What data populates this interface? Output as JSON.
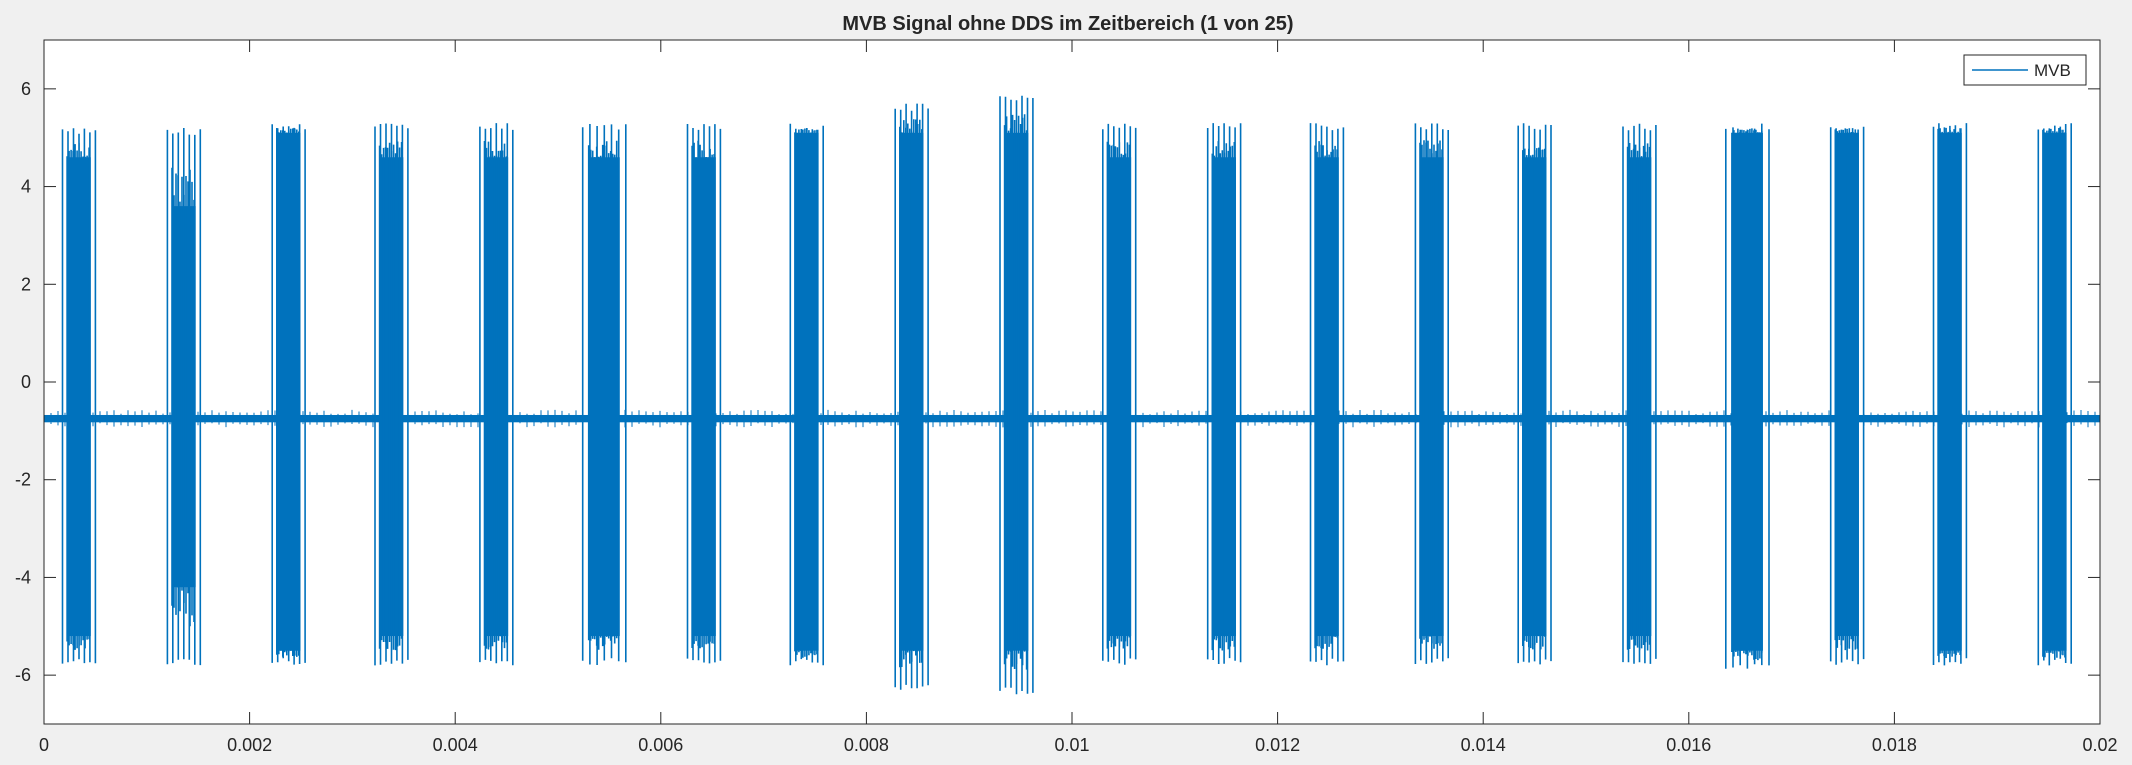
{
  "chart_data": {
    "type": "line",
    "title": "MVB Signal ohne DDS im Zeitbereich (1 von 25)",
    "xlabel": "",
    "ylabel": "",
    "xlim": [
      0,
      0.02
    ],
    "ylim": [
      -7,
      7
    ],
    "xticks": [
      0,
      0.002,
      0.004,
      0.006,
      0.008,
      0.01,
      0.012,
      0.014,
      0.016,
      0.018,
      0.02
    ],
    "xtick_labels": [
      "0",
      "0.002",
      "0.004",
      "0.006",
      "0.008",
      "0.01",
      "0.012",
      "0.014",
      "0.016",
      "0.018",
      "0.02"
    ],
    "yticks": [
      -6,
      -4,
      -2,
      0,
      2,
      4,
      6
    ],
    "ytick_labels": [
      "-6",
      "-4",
      "-2",
      "0",
      "2",
      "4",
      "6"
    ],
    "grid": false,
    "legend_position": "top-right",
    "series": [
      {
        "name": "MVB",
        "color": "#0072BD",
        "baseline": -0.75,
        "baseline_noise": 0.15,
        "bursts": [
          {
            "start": 0.00018,
            "end": 0.0005,
            "pos_peak": 5.2,
            "pos_body": 4.6,
            "neg_peak": -5.8,
            "neg_body": -5.2
          },
          {
            "start": 0.0012,
            "end": 0.00152,
            "pos_peak": 5.2,
            "pos_body": 3.6,
            "neg_peak": -5.8,
            "neg_body": -4.2
          },
          {
            "start": 0.00222,
            "end": 0.00254,
            "pos_peak": 5.3,
            "pos_body": 5.1,
            "neg_peak": -5.8,
            "neg_body": -5.5
          },
          {
            "start": 0.00322,
            "end": 0.00354,
            "pos_peak": 5.3,
            "pos_body": 4.6,
            "neg_peak": -5.8,
            "neg_body": -5.2
          },
          {
            "start": 0.00424,
            "end": 0.00456,
            "pos_peak": 5.3,
            "pos_body": 4.6,
            "neg_peak": -5.8,
            "neg_body": -5.2
          },
          {
            "start": 0.00524,
            "end": 0.00566,
            "pos_peak": 5.3,
            "pos_body": 4.6,
            "neg_peak": -5.8,
            "neg_body": -5.2
          },
          {
            "start": 0.00626,
            "end": 0.00658,
            "pos_peak": 5.3,
            "pos_body": 4.6,
            "neg_peak": -5.8,
            "neg_body": -5.2
          },
          {
            "start": 0.00726,
            "end": 0.00758,
            "pos_peak": 5.3,
            "pos_body": 5.1,
            "neg_peak": -5.8,
            "neg_body": -5.5
          },
          {
            "start": 0.00828,
            "end": 0.0086,
            "pos_peak": 5.7,
            "pos_body": 5.1,
            "neg_peak": -6.3,
            "neg_body": -5.5
          },
          {
            "start": 0.0093,
            "end": 0.00962,
            "pos_peak": 5.9,
            "pos_body": 5.1,
            "neg_peak": -6.4,
            "neg_body": -5.5
          },
          {
            "start": 0.0103,
            "end": 0.01062,
            "pos_peak": 5.3,
            "pos_body": 4.6,
            "neg_peak": -5.8,
            "neg_body": -5.2
          },
          {
            "start": 0.01132,
            "end": 0.01164,
            "pos_peak": 5.3,
            "pos_body": 4.6,
            "neg_peak": -5.8,
            "neg_body": -5.2
          },
          {
            "start": 0.01232,
            "end": 0.01264,
            "pos_peak": 5.3,
            "pos_body": 4.6,
            "neg_peak": -5.8,
            "neg_body": -5.2
          },
          {
            "start": 0.01334,
            "end": 0.01366,
            "pos_peak": 5.3,
            "pos_body": 4.6,
            "neg_peak": -5.8,
            "neg_body": -5.2
          },
          {
            "start": 0.01434,
            "end": 0.01466,
            "pos_peak": 5.3,
            "pos_body": 4.6,
            "neg_peak": -5.8,
            "neg_body": -5.2
          },
          {
            "start": 0.01536,
            "end": 0.01568,
            "pos_peak": 5.3,
            "pos_body": 4.6,
            "neg_peak": -5.8,
            "neg_body": -5.2
          },
          {
            "start": 0.01636,
            "end": 0.01678,
            "pos_peak": 5.3,
            "pos_body": 5.1,
            "neg_peak": -5.9,
            "neg_body": -5.5
          },
          {
            "start": 0.01738,
            "end": 0.0177,
            "pos_peak": 5.3,
            "pos_body": 5.1,
            "neg_peak": -5.8,
            "neg_body": -5.2
          },
          {
            "start": 0.01838,
            "end": 0.0187,
            "pos_peak": 5.3,
            "pos_body": 5.1,
            "neg_peak": -5.8,
            "neg_body": -5.5
          },
          {
            "start": 0.0194,
            "end": 0.01972,
            "pos_peak": 5.3,
            "pos_body": 5.1,
            "neg_peak": -5.8,
            "neg_body": -5.5
          }
        ]
      }
    ]
  }
}
